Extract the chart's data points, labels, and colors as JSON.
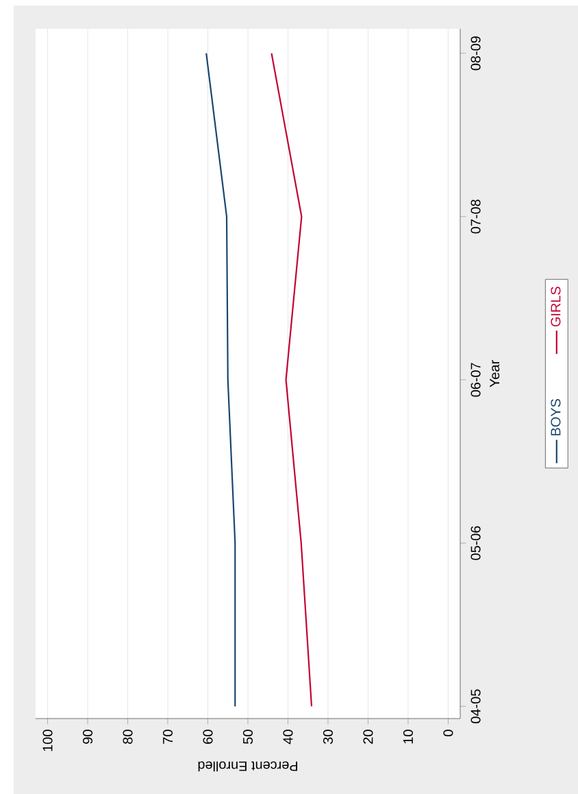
{
  "chart_data": {
    "type": "line",
    "orientation": "horizontal",
    "xlabel": "Percent Enrolled",
    "ylabel": "Year",
    "categories": [
      "08-09",
      "07-08",
      "06-07",
      "05-06",
      "04-05"
    ],
    "series": [
      {
        "name": "BOYS",
        "color": "#1a476f",
        "values": [
          60.4,
          55.3,
          55,
          53.2,
          53.2
        ]
      },
      {
        "name": "GIRLS",
        "color": "#c10534",
        "values": [
          44.1,
          36.6,
          40.5,
          36.7,
          34.1
        ]
      }
    ],
    "xlim": [
      103,
      -3
    ],
    "xticks": [
      0,
      10,
      20,
      30,
      40,
      50,
      60,
      70,
      80,
      90,
      100
    ],
    "grid": "x",
    "legend": "right",
    "marker": "none",
    "line_style": "solid"
  }
}
